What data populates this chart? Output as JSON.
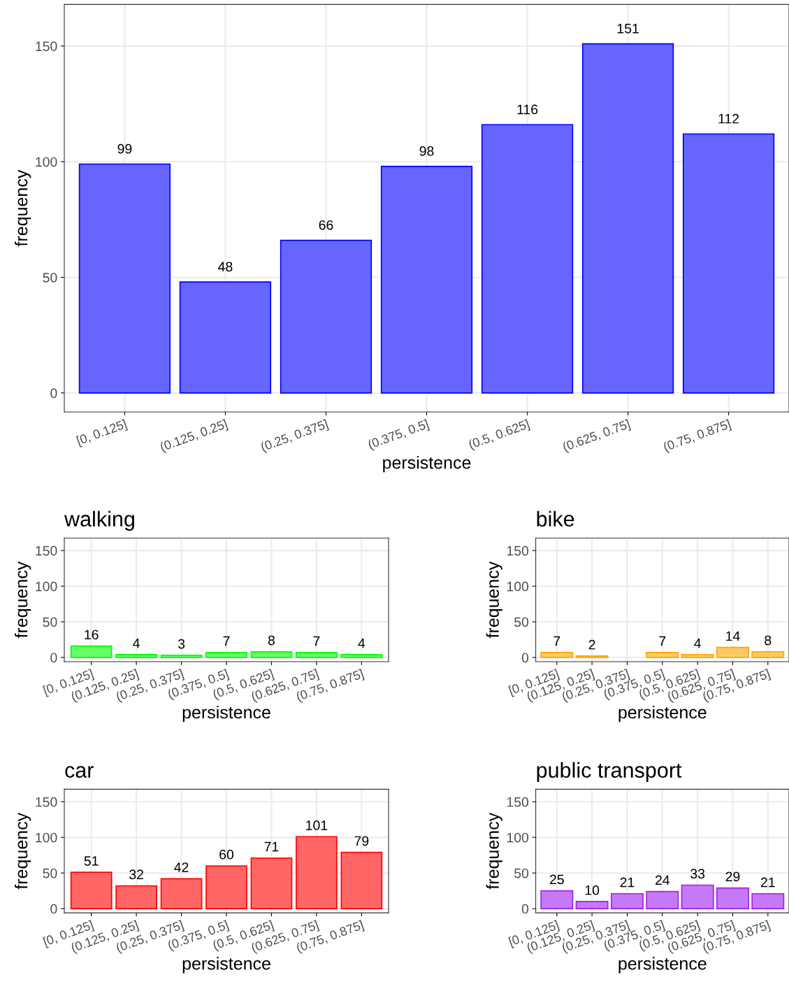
{
  "chart_data": [
    {
      "type": "bar",
      "xlabel": "persistence",
      "ylabel": "frequency",
      "categories": [
        "[0, 0.125]",
        "(0.125, 0.25]",
        "(0.25, 0.375]",
        "(0.375, 0.5]",
        "(0.5, 0.625]",
        "(0.625, 0.75]",
        "(0.75, 0.875]"
      ],
      "values": [
        99,
        48,
        66,
        98,
        116,
        151,
        112
      ],
      "color": "#6666ff",
      "ylim": [
        -8.2,
        168
      ],
      "yticks": [
        0,
        50,
        100,
        150
      ],
      "grid": true,
      "data_labels": true
    },
    {
      "type": "bar",
      "title": "walking",
      "xlabel": "persistence",
      "ylabel": "frequency",
      "categories": [
        "[0, 0.125]",
        "(0.125, 0.25]",
        "(0.25, 0.375]",
        "(0.375, 0.5]",
        "(0.5, 0.625]",
        "(0.625, 0.75]",
        "(0.75, 0.875]"
      ],
      "values": [
        16,
        4,
        3,
        7,
        8,
        7,
        4
      ],
      "color": "#66ff66",
      "ylim": [
        -5.9,
        167.6
      ],
      "yticks": [
        0,
        50,
        100,
        150
      ],
      "grid": true,
      "data_labels": true
    },
    {
      "type": "bar",
      "title": "bike",
      "xlabel": "persistence",
      "ylabel": "frequency",
      "categories": [
        "[0, 0.125]",
        "(0.125, 0.25]",
        "(0.25, 0.375]",
        "(0.375, 0.5]",
        "(0.5, 0.625]",
        "(0.625, 0.75]",
        "(0.75, 0.875]"
      ],
      "values": [
        7,
        2,
        null,
        7,
        4,
        14,
        8
      ],
      "color": "#ffc966",
      "ylim": [
        -5.9,
        167.6
      ],
      "yticks": [
        0,
        50,
        100,
        150
      ],
      "grid": true,
      "data_labels": true
    },
    {
      "type": "bar",
      "title": "car",
      "xlabel": "persistence",
      "ylabel": "frequency",
      "categories": [
        "[0, 0.125]",
        "(0.125, 0.25]",
        "(0.25, 0.375]",
        "(0.375, 0.5]",
        "(0.5, 0.625]",
        "(0.625, 0.75]",
        "(0.75, 0.875]"
      ],
      "values": [
        51,
        32,
        42,
        60,
        71,
        101,
        79
      ],
      "color": "#ff6666",
      "ylim": [
        -5.9,
        167.6
      ],
      "yticks": [
        0,
        50,
        100,
        150
      ],
      "grid": true,
      "data_labels": true
    },
    {
      "type": "bar",
      "title": "public transport",
      "xlabel": "persistence",
      "ylabel": "frequency",
      "categories": [
        "[0, 0.125]",
        "(0.125, 0.25]",
        "(0.25, 0.375]",
        "(0.375, 0.5]",
        "(0.5, 0.625]",
        "(0.625, 0.75]",
        "(0.75, 0.875]"
      ],
      "values": [
        25,
        10,
        21,
        24,
        33,
        29,
        21
      ],
      "color": "#c679f6",
      "ylim": [
        -5.9,
        167.6
      ],
      "yticks": [
        0,
        50,
        100,
        150
      ],
      "grid": true,
      "data_labels": true
    }
  ]
}
